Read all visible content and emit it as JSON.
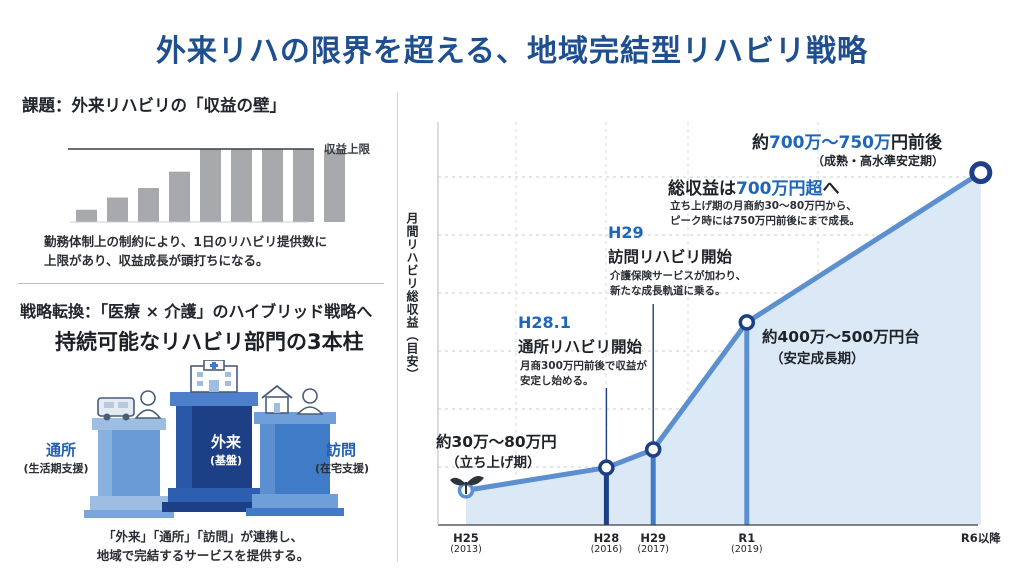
{
  "title": "外来リハの限界を超える、地域完結型リハビリ戦略",
  "left_top": {
    "heading": "課題：外来リハビリの「収益の壁」",
    "limit_label": "収益上限",
    "bars": [
      0.36,
      0.72,
      1.0,
      1.48,
      2.13,
      2.13,
      2.13,
      2.13,
      2.13
    ],
    "caption_lines": [
      "勤務体制上の制約により、1日のリハビリ提供数に",
      "上限があり、収益成長が頭打ちになる。"
    ]
  },
  "left_bottom": {
    "heading": "戦略転換：「医療 × 介護」のハイブリッド戦略へ",
    "subheading": "持続可能なリハビリ部門の3本柱",
    "pillars": {
      "tsusho": {
        "label": "通所",
        "sub": "(生活期支援)"
      },
      "gairai": {
        "label": "外来",
        "sub": "(基盤)"
      },
      "homon": {
        "label": "訪問",
        "sub": "(在宅支援)"
      }
    },
    "caption_lines": [
      "「外来」「通所」「訪問」が連携し、",
      "地域で完結するサービスを提供する。"
    ]
  },
  "colors": {
    "title": "#1f4f8f",
    "accent": "#1f66b8",
    "line": "#5b8fd0",
    "area": "#dbe8f6",
    "pillar_dark": "#1c3f86",
    "pillar_light": "#3f7bc6"
  },
  "chart_data": {
    "type": "line",
    "ylabel": "月間リハビリ総収益（目安）",
    "x": [
      "H25",
      "H28",
      "H29",
      "R1",
      "R6以降"
    ],
    "x_sub": [
      "(2013)",
      "(2016)",
      "(2017)",
      "(2019)",
      ""
    ],
    "x_positions": [
      2013,
      2016,
      2017,
      2019,
      2024
    ],
    "values": [
      30,
      80,
      120,
      400,
      730
    ],
    "grid": true,
    "annotations": [
      {
        "main": "約30万～80万円",
        "sub": "（立ち上げ期）"
      },
      {
        "tag": "H28.1",
        "main": "通所リハビリ開始",
        "lines": [
          "月商300万円前後で収益が",
          "安定し始める。"
        ]
      },
      {
        "tag": "H29",
        "main": "訪問リハビリ開始",
        "lines": [
          "介護保険サービスが加わり、",
          "新たな成長軌道に乗る。"
        ]
      },
      {
        "main": "約400万～500万円台",
        "sub": "（安定成長期）"
      },
      {
        "main_pre": "総収益は",
        "main_num": "700万円超",
        "main_post": "へ",
        "lines": [
          "立ち上げ期の月商約30～80万円から、",
          "ピーク時には750万円前後にまで成長。"
        ]
      },
      {
        "main_pre": "約",
        "main_num": "700万～750万",
        "main_post": "円前後",
        "sub": "（成熟・高水準安定期）"
      }
    ]
  }
}
